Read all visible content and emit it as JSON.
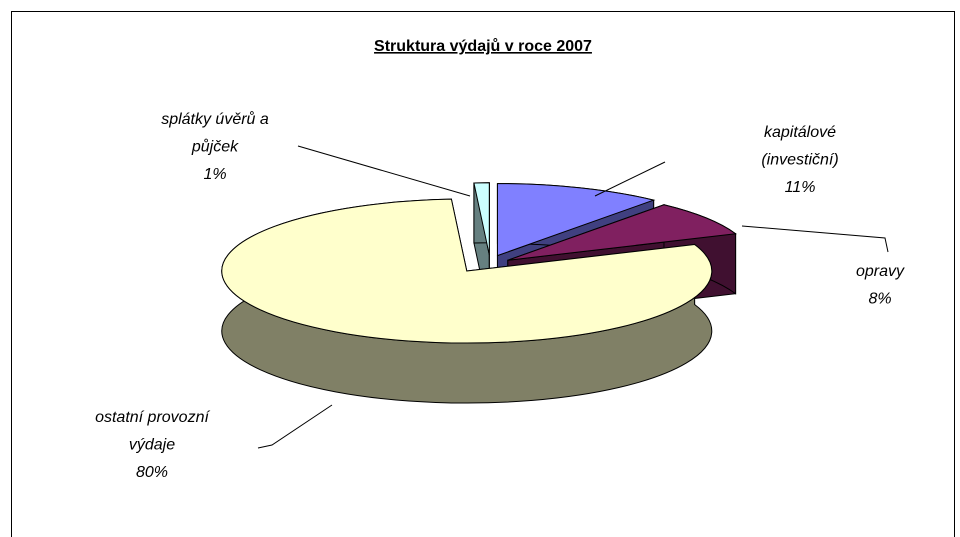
{
  "chart_data": {
    "type": "pie3d",
    "title": "Struktura výdajů v roce 2007",
    "categories": [
      "kapitálové (investiční)",
      "opravy",
      "ostatní provozní výdaje",
      "splátky úvěrů a půjček"
    ],
    "values": [
      11,
      8,
      80,
      1
    ],
    "value_labels": [
      "11%",
      "8%",
      "80%",
      "1%"
    ],
    "colors": [
      "#8080ff",
      "#802060",
      "#ffffcc",
      "#ccffff"
    ]
  }
}
